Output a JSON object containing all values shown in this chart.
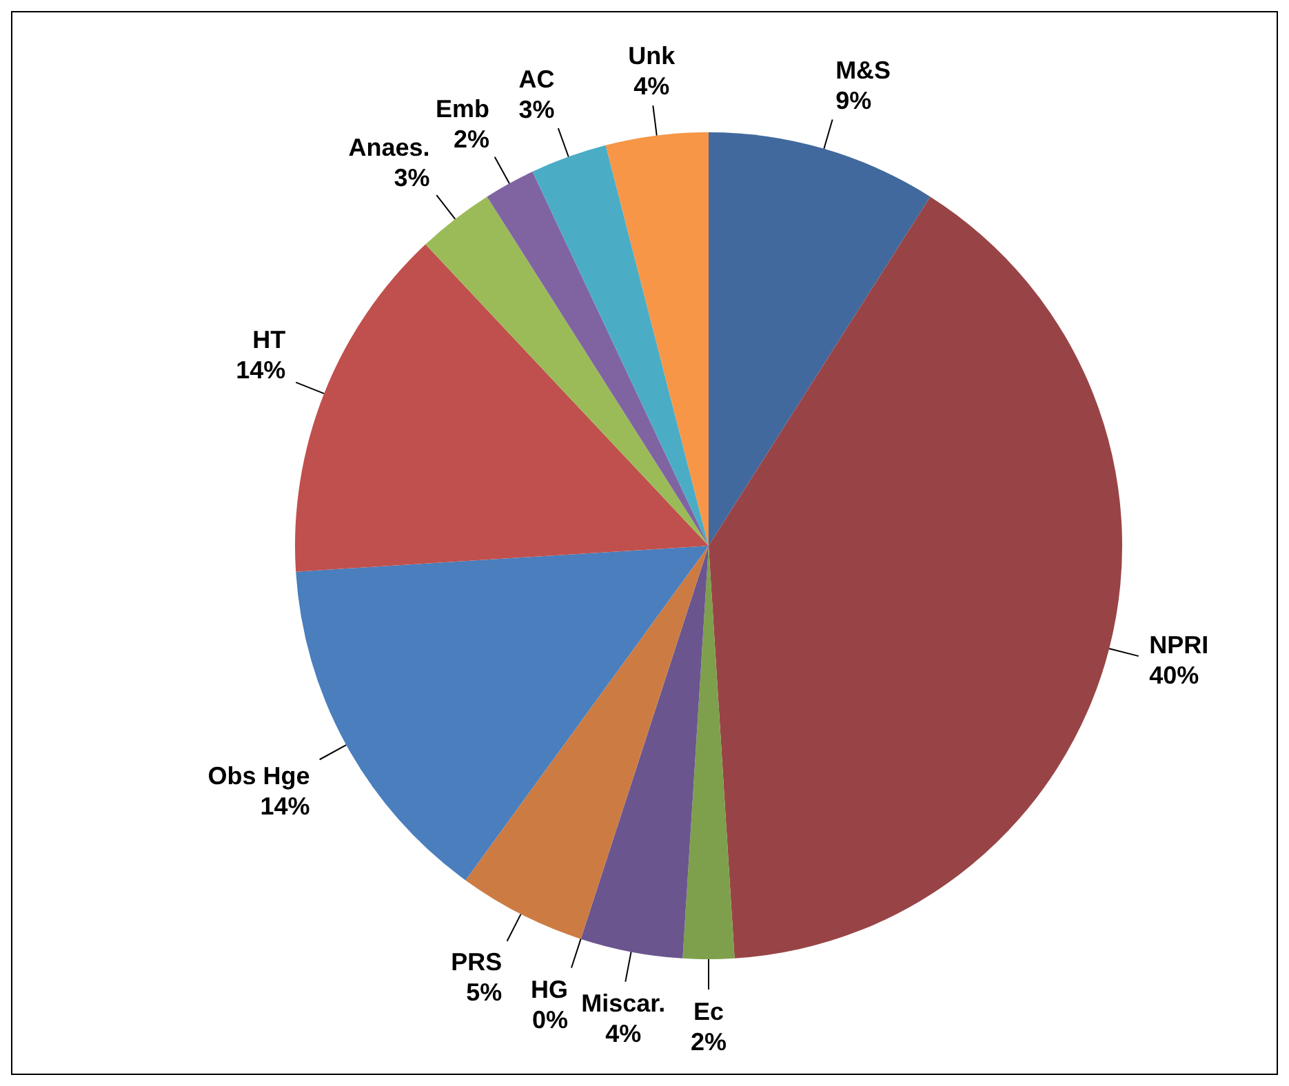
{
  "chart_data": {
    "type": "pie",
    "categories": [
      "M&S",
      "NPRI",
      "Ec",
      "Miscar.",
      "HG",
      "PRS",
      "Obs Hge",
      "HT",
      "Anaes.",
      "Emb",
      "AC",
      "Unk"
    ],
    "values": [
      9,
      40,
      2,
      4,
      0,
      5,
      14,
      14,
      3,
      2,
      3,
      4
    ],
    "value_labels": [
      "9%",
      "40%",
      "2%",
      "4%",
      "0%",
      "5%",
      "14%",
      "14%",
      "3%",
      "2%",
      "3%",
      "4%"
    ],
    "colors": [
      "#41699e",
      "#984446",
      "#7ea04c",
      "#6a558f",
      "#3e8fa8",
      "#cc7c43",
      "#4a7ebd",
      "#c0504d",
      "#9bbb59",
      "#8064a2",
      "#4bacc6",
      "#f79646"
    ]
  }
}
